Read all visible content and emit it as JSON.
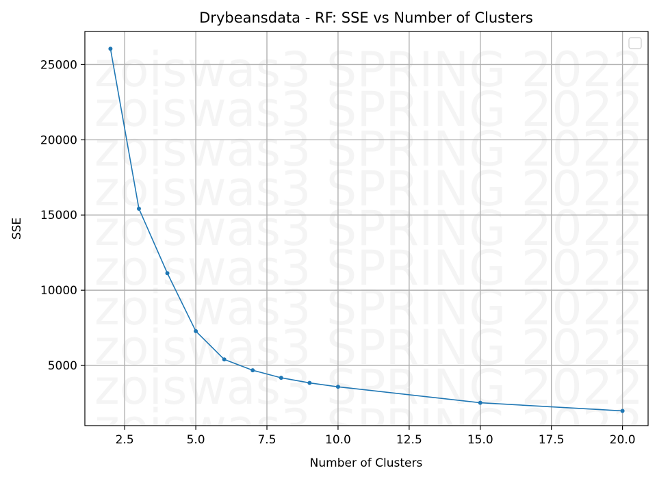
{
  "chart_data": {
    "type": "line",
    "title": "Drybeansdata - RF: SSE vs Number of Clusters",
    "xlabel": "Number of Clusters",
    "ylabel": "SSE",
    "xlim": [
      1.1,
      20.9
    ],
    "ylim": [
      1000,
      27200
    ],
    "xticks": [
      2.5,
      5.0,
      7.5,
      10.0,
      12.5,
      15.0,
      17.5,
      20.0
    ],
    "xtick_labels": [
      "2.5",
      "5.0",
      "7.5",
      "10.0",
      "12.5",
      "15.0",
      "17.5",
      "20.0"
    ],
    "yticks": [
      5000,
      10000,
      15000,
      20000,
      25000
    ],
    "ytick_labels": [
      "5000",
      "10000",
      "15000",
      "20000",
      "25000"
    ],
    "grid": true,
    "legend": "top-right (empty)",
    "watermark": "zoiswas3 SPRING 2022",
    "series": [
      {
        "color": "#1f77b4",
        "x": [
          2,
          3,
          4,
          5,
          6,
          7,
          8,
          9,
          10,
          15,
          20
        ],
        "y": [
          26050,
          15420,
          11130,
          7280,
          5400,
          4680,
          4180,
          3840,
          3580,
          2520,
          1980
        ]
      }
    ]
  }
}
